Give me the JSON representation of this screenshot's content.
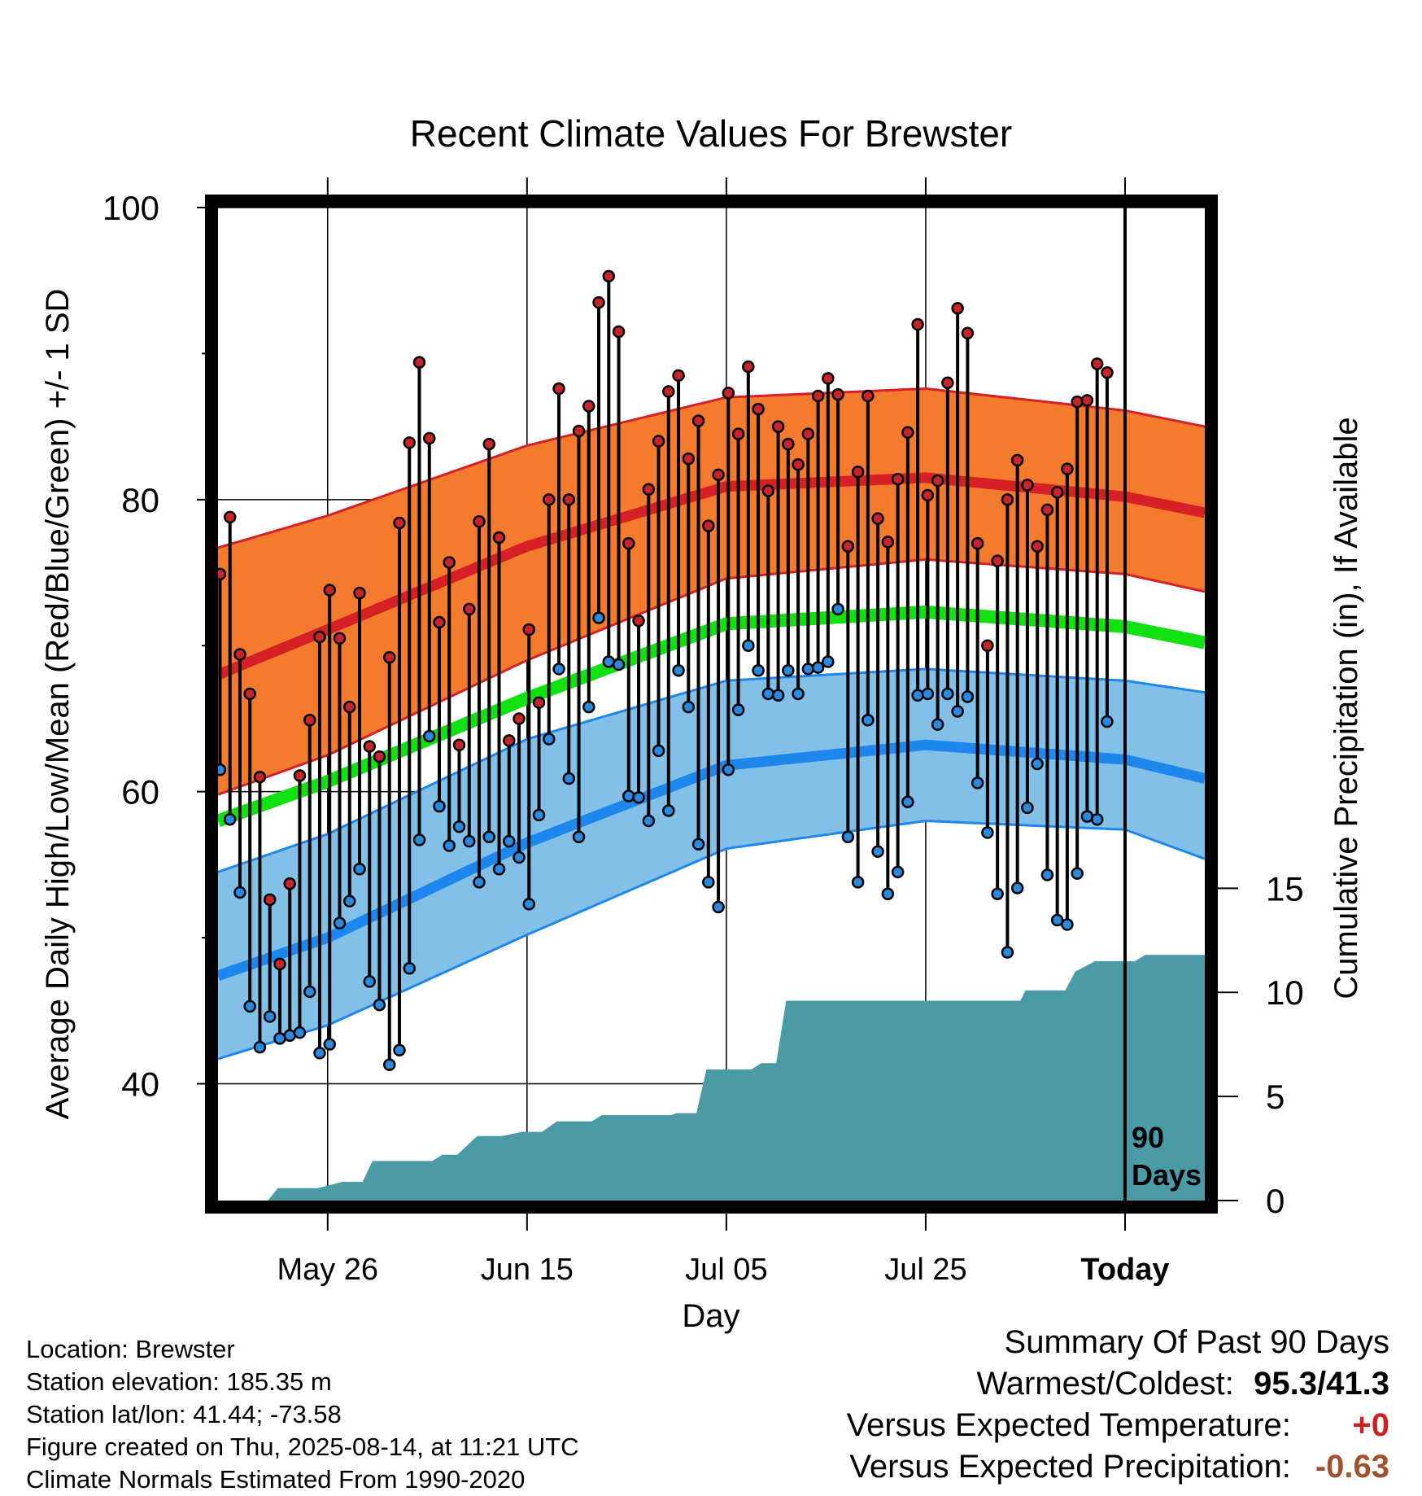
{
  "chart_data": {
    "type": "line",
    "title": "Recent Climate Values For Brewster",
    "xlabel": "Day",
    "ylabel": "Average Daily High/Low/Mean (Red/Blue/Green) +/- 1 SD",
    "y2label": "Cumulative Precipitation (in), If Available",
    "ylim": [
      32,
      100
    ],
    "y2lim": [
      0,
      47.7
    ],
    "y_ticks": [
      40,
      60,
      80,
      100
    ],
    "y2_ticks": [
      0,
      5,
      10,
      15
    ],
    "xlim": [
      -11,
      88
    ],
    "x_tick_positions": [
      0,
      20,
      40,
      60,
      80
    ],
    "x_tick_labels": [
      "May 26",
      "Jun 15",
      "Jul 05",
      "Jul 25",
      "Today"
    ],
    "today_marker_label": "90\nDays",
    "colors": {
      "high_band": "#f47a2e",
      "high_line": "#d62026",
      "low_band": "#82c0e8",
      "low_line": "#1e87ee",
      "mean_line": "#11e011",
      "precip": "#4a9ba6",
      "high_marker": "#c8252a",
      "low_marker": "#2a8ae0",
      "temp_positive": "#cc2222",
      "precip_negative": "#a0522d"
    },
    "normals": {
      "x": [
        -11,
        0,
        20,
        40,
        60,
        80,
        88
      ],
      "high_mean": [
        68.0,
        71.1,
        76.8,
        80.9,
        81.5,
        80.2,
        79.1
      ],
      "high_upper": [
        76.7,
        78.9,
        83.7,
        87.0,
        87.6,
        86.1,
        85.0
      ],
      "high_lower": [
        59.8,
        62.5,
        69.0,
        74.6,
        75.9,
        74.9,
        73.7
      ],
      "mean": [
        58.0,
        60.7,
        66.4,
        71.5,
        72.3,
        71.3,
        70.2
      ],
      "low_mean": [
        47.4,
        50.0,
        56.5,
        61.8,
        63.2,
        62.2,
        60.9
      ],
      "low_upper": [
        54.5,
        57.1,
        63.6,
        67.6,
        68.4,
        67.6,
        66.8
      ],
      "low_lower": [
        41.7,
        44.0,
        50.2,
        56.1,
        58.0,
        57.4,
        55.4
      ]
    },
    "daily_high": [
      74.9,
      78.8,
      69.4,
      66.7,
      61.0,
      52.6,
      48.2,
      53.7,
      61.1,
      64.9,
      70.6,
      73.8,
      70.5,
      65.8,
      73.6,
      63.1,
      62.4,
      69.2,
      78.4,
      83.9,
      89.4,
      84.2,
      71.6,
      75.7,
      63.2,
      72.5,
      78.5,
      83.8,
      77.4,
      63.5,
      65.0,
      71.1,
      66.1,
      80.0,
      87.6,
      80.0,
      84.7,
      86.4,
      93.5,
      95.3,
      91.5,
      77.0,
      71.7,
      80.7,
      84.0,
      87.4,
      88.5,
      82.8,
      85.4,
      78.2,
      81.7,
      87.3,
      84.5,
      89.1,
      86.2,
      80.6,
      85.0,
      83.8,
      82.4,
      84.5,
      87.1,
      88.3,
      87.2,
      76.8,
      81.9,
      87.1,
      78.7,
      77.1,
      81.4,
      84.6,
      92.0,
      80.3,
      81.3,
      88.0,
      93.1,
      91.4,
      77.0,
      70.0,
      75.8,
      80.0,
      82.7,
      81.0,
      76.8,
      79.3,
      80.5,
      82.1,
      86.7,
      86.8,
      89.3,
      88.7
    ],
    "daily_low": [
      61.5,
      58.1,
      53.1,
      45.3,
      42.5,
      44.6,
      43.1,
      43.3,
      43.5,
      46.3,
      42.1,
      42.7,
      51.0,
      52.5,
      54.7,
      47.0,
      45.4,
      41.3,
      42.3,
      47.9,
      56.7,
      63.8,
      59.0,
      56.3,
      57.6,
      56.6,
      53.8,
      56.9,
      54.7,
      56.6,
      55.5,
      52.3,
      58.4,
      63.6,
      68.4,
      60.9,
      56.9,
      65.8,
      71.9,
      68.9,
      68.7,
      59.7,
      59.6,
      58.0,
      62.8,
      58.7,
      68.3,
      65.8,
      56.4,
      53.8,
      52.1,
      61.5,
      65.6,
      70.0,
      68.3,
      66.7,
      66.6,
      68.3,
      66.7,
      68.4,
      68.5,
      68.9,
      72.5,
      56.9,
      53.8,
      64.9,
      55.9,
      53.0,
      54.5,
      59.3,
      66.6,
      66.7,
      64.6,
      66.7,
      65.5,
      66.5,
      60.6,
      57.2,
      53.0,
      49.0,
      53.4,
      58.9,
      61.9,
      54.3,
      51.2,
      50.9,
      54.4,
      58.3,
      58.1,
      64.8
    ],
    "precipitation_cumulative": {
      "x": [
        -11,
        -6.0,
        -5.0,
        -1.0,
        1.5,
        3.5,
        4.5,
        10.5,
        11.5,
        13.0,
        15.0,
        17.5,
        19.5,
        21.5,
        23.0,
        26.5,
        27.5,
        34.5,
        35.0,
        37.0,
        38.0,
        42.5,
        43.5,
        45.0,
        46.0,
        69.5,
        70.0,
        74.0,
        75.0,
        77.0,
        81.0,
        82.0,
        88
      ],
      "y": [
        0,
        0,
        0.6,
        0.6,
        0.9,
        0.9,
        1.9,
        1.9,
        2.2,
        2.2,
        3.1,
        3.1,
        3.3,
        3.3,
        3.8,
        3.8,
        4.1,
        4.1,
        4.2,
        4.2,
        6.3,
        6.3,
        6.6,
        6.6,
        9.6,
        9.6,
        10.1,
        10.1,
        11.0,
        11.5,
        11.5,
        11.8,
        11.8
      ]
    }
  },
  "info": {
    "location": "Location: Brewster",
    "elevation": "Station elevation: 185.35 m",
    "latlon": "Station lat/lon: 41.44; -73.58",
    "created": "Figure created on Thu, 2025-08-14, at 11:21 UTC",
    "normals": "Climate Normals Estimated From 1990-2020"
  },
  "summary": {
    "title": "Summary Of Past 90 Days",
    "warmest_label": "Warmest/Coldest:",
    "warmest_value": "95.3/41.3",
    "temp_label": "Versus Expected Temperature:",
    "temp_value": "+0",
    "precip_label": "Versus Expected Precipitation:",
    "precip_value": "-0.63"
  }
}
